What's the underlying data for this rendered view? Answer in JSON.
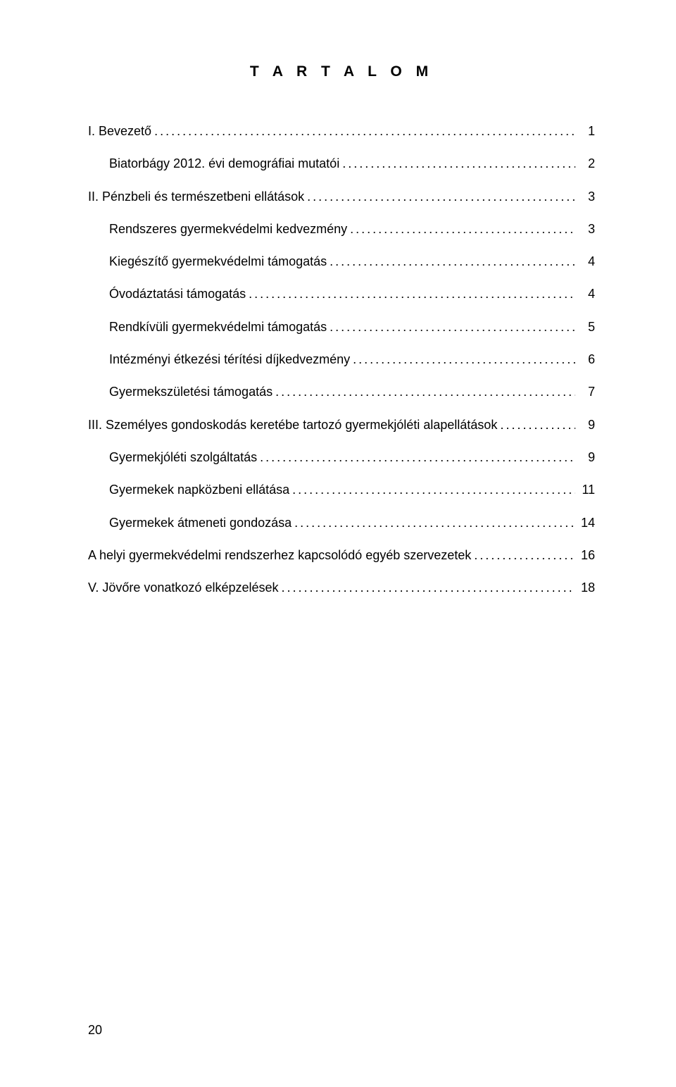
{
  "title": "T A R T A L O M",
  "pageNumber": "20",
  "colors": {
    "background": "#ffffff",
    "text": "#000000"
  },
  "typography": {
    "title_fontsize": 21,
    "title_letterspacing": 7,
    "body_fontsize": 18,
    "title_weight": "bold",
    "font_family": "Arial"
  },
  "toc": [
    {
      "label": "I. Bevezető",
      "page": "1",
      "indent": 0
    },
    {
      "label": "Biatorbágy 2012. évi demográfiai mutatói",
      "page": "2",
      "indent": 1
    },
    {
      "label": "II. Pénzbeli és természetbeni ellátások",
      "page": "3",
      "indent": 0
    },
    {
      "label": "Rendszeres gyermekvédelmi kedvezmény",
      "page": "3",
      "indent": 1
    },
    {
      "label": "Kiegészítő gyermekvédelmi támogatás",
      "page": "4",
      "indent": 1
    },
    {
      "label": "Óvodáztatási támogatás",
      "page": "4",
      "indent": 1
    },
    {
      "label": "Rendkívüli gyermekvédelmi támogatás",
      "page": "5",
      "indent": 1
    },
    {
      "label": "Intézményi étkezési térítési díjkedvezmény",
      "page": "6",
      "indent": 1
    },
    {
      "label": "Gyermekszületési támogatás",
      "page": "7",
      "indent": 1
    },
    {
      "label": "III. Személyes gondoskodás keretébe tartozó gyermekjóléti alapellátások",
      "page": "9",
      "indent": 0
    },
    {
      "label": "Gyermekjóléti szolgáltatás",
      "page": "9",
      "indent": 1
    },
    {
      "label": "Gyermekek napközbeni ellátása",
      "page": "11",
      "indent": 1
    },
    {
      "label": "Gyermekek átmeneti gondozása",
      "page": "14",
      "indent": 1
    },
    {
      "label": "A helyi gyermekvédelmi rendszerhez kapcsolódó egyéb szervezetek",
      "page": "16",
      "indent": 0
    },
    {
      "label": "V. Jövőre vonatkozó elképzelések",
      "page": "18",
      "indent": 0
    }
  ]
}
